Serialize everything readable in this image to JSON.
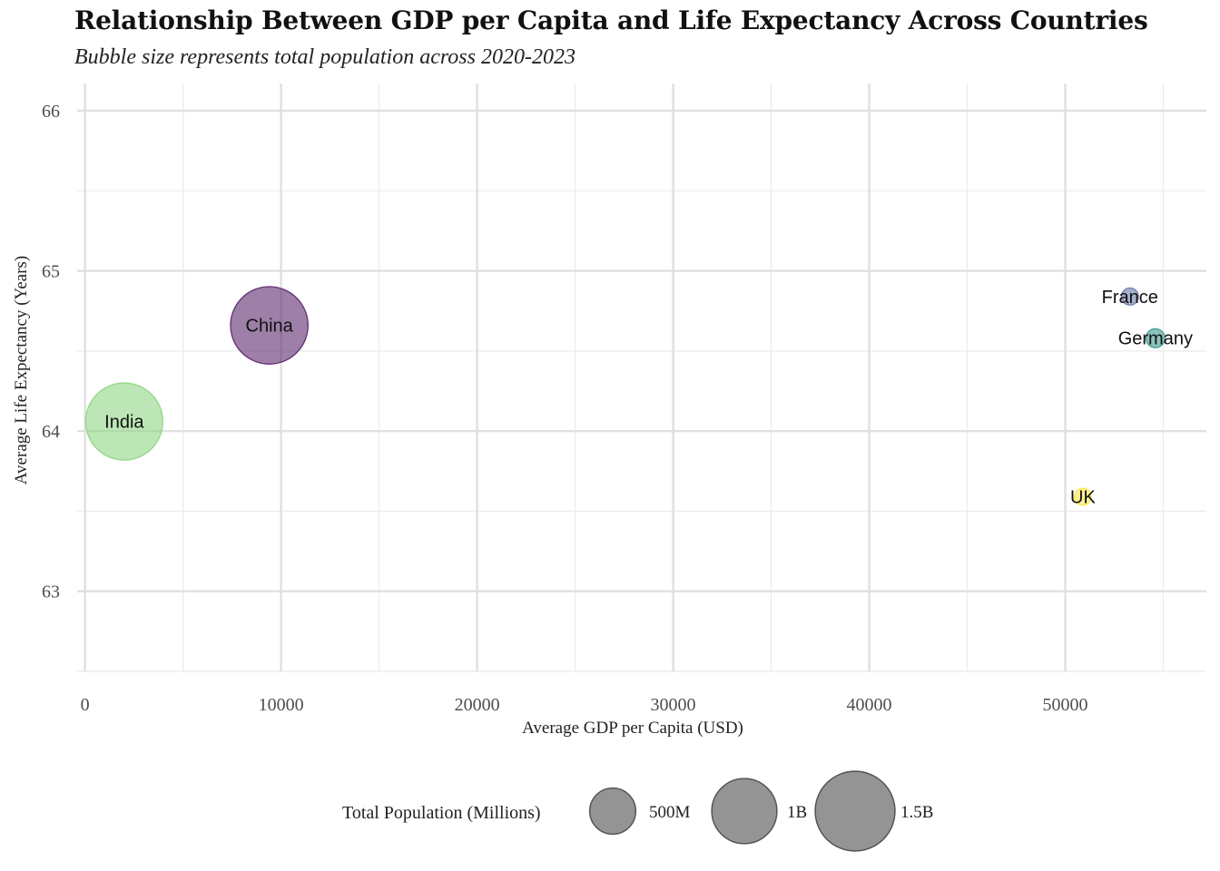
{
  "chart_data": {
    "type": "scatter",
    "title": "Relationship Between GDP per Capita and Life Expectancy Across Countries",
    "subtitle": "Bubble size represents total population across 2020-2023",
    "xlabel": "Average GDP per Capita (USD)",
    "ylabel": "Average Life Expectancy (Years)",
    "xlim": [
      -400,
      57200
    ],
    "ylim": [
      62.5,
      66.17
    ],
    "x_ticks": [
      0,
      10000,
      20000,
      30000,
      40000,
      50000
    ],
    "y_ticks": [
      63,
      64,
      65,
      66
    ],
    "grid": true,
    "legend_position": "bottom",
    "size_legend": {
      "title": "Total Population (Millions)",
      "entries": [
        {
          "label": "500M",
          "value": 500
        },
        {
          "label": "1B",
          "value": 1000
        },
        {
          "label": "1.5B",
          "value": 1500
        }
      ]
    },
    "points": [
      {
        "label": "India",
        "x": 2000,
        "y": 64.06,
        "population": 1400,
        "color": "#90d684"
      },
      {
        "label": "China",
        "x": 9400,
        "y": 64.66,
        "population": 1410,
        "color": "#5c2a6e"
      },
      {
        "label": "France",
        "x": 53300,
        "y": 64.84,
        "population": 68,
        "color": "#6a7aa8"
      },
      {
        "label": "Germany",
        "x": 54600,
        "y": 64.58,
        "population": 84,
        "color": "#3f9a8e"
      },
      {
        "label": "UK",
        "x": 50900,
        "y": 63.59,
        "population": 67,
        "color": "#fde74c"
      }
    ]
  }
}
